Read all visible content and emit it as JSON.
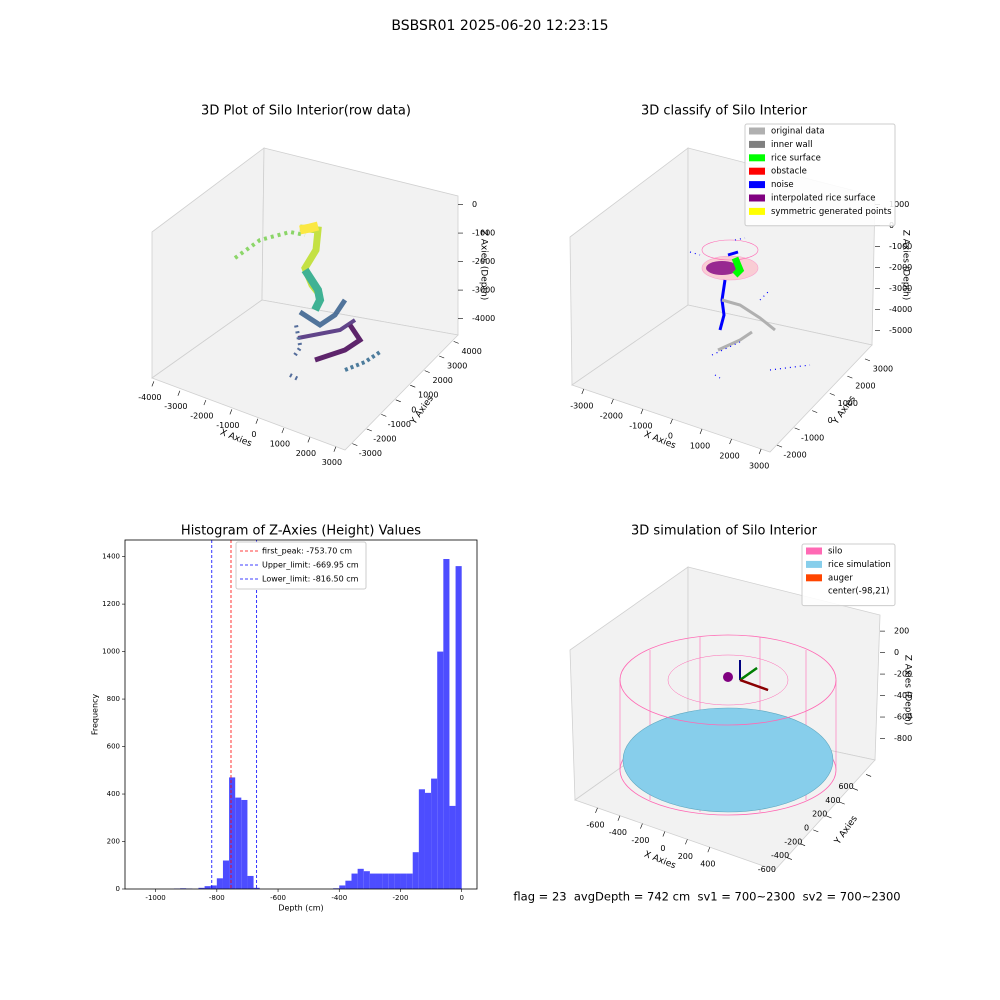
{
  "title": "BSBSR01 2025-06-20 12:23:15",
  "chart_data": [
    {
      "type": "scatter3d",
      "title": "3D Plot of Silo Interior(row data)",
      "xlabel": "X Axies",
      "ylabel": "Y Axies",
      "zlabel": "Z Axies (Depth)",
      "xlim": [
        -4150,
        3350
      ],
      "ylim": [
        -3300,
        4300
      ],
      "zlim": [
        -4400,
        300
      ],
      "xticks": [
        -4000,
        -3000,
        -2000,
        -1000,
        0,
        1000,
        2000,
        3000
      ],
      "yticks": [
        -3000,
        -2000,
        -1000,
        0,
        1000,
        2000,
        3000,
        4000
      ],
      "zticks": [
        0,
        -1000,
        -2000,
        -3000,
        -4000
      ]
    },
    {
      "type": "scatter3d",
      "title": "3D classify of Silo Interior",
      "xlabel": "X Axies",
      "ylabel": "Y Axies",
      "zlabel": "Z Axies (Depth)",
      "xlim": [
        -3400,
        3300
      ],
      "ylim": [
        -2400,
        3400
      ],
      "zlim": [
        -5300,
        1300
      ],
      "xticks": [
        -3000,
        -2000,
        -1000,
        0,
        1000,
        2000,
        3000
      ],
      "yticks": [
        -2000,
        -1000,
        0,
        1000,
        2000,
        3000
      ],
      "zticks": [
        1000,
        0,
        -1000,
        -2000,
        -3000,
        -4000,
        -5000
      ],
      "legend": [
        {
          "name": "original data",
          "color": "#b0b0b0"
        },
        {
          "name": "inner wall",
          "color": "#808080"
        },
        {
          "name": "rice surface",
          "color": "#00ff00"
        },
        {
          "name": "obstacle",
          "color": "#ff0000"
        },
        {
          "name": "noise",
          "color": "#0000ff"
        },
        {
          "name": "interpolated rice surface",
          "color": "#800080"
        },
        {
          "name": "symmetric generated points",
          "color": "#ffff00"
        }
      ]
    },
    {
      "type": "histogram",
      "title": "Histogram of Z-Axies (Height) Values",
      "xlabel": "Depth (cm)",
      "ylabel": "Frequency",
      "color": "#4d4dff",
      "bins": [
        -940,
        -920,
        -900,
        -880,
        -860,
        -840,
        -820,
        -800,
        -780,
        -760,
        -740,
        -720,
        -700,
        -680,
        -660,
        -640,
        -620,
        -600,
        -580,
        -560,
        -540,
        -520,
        -500,
        -480,
        -460,
        -440,
        -420,
        -400,
        -380,
        -360,
        -340,
        -320,
        -300,
        -280,
        -260,
        -240,
        -220,
        -200,
        -180,
        -160,
        -140,
        -120,
        -100,
        -80,
        -60,
        -40,
        -20,
        0
      ],
      "values": [
        2,
        3,
        2,
        0,
        5,
        12,
        15,
        45,
        120,
        470,
        385,
        375,
        55,
        5,
        0,
        0,
        0,
        0,
        0,
        0,
        0,
        0,
        0,
        0,
        0,
        0,
        3,
        15,
        35,
        65,
        85,
        75,
        65,
        65,
        65,
        65,
        65,
        65,
        65,
        155,
        420,
        405,
        465,
        1000,
        1390,
        350,
        1360
      ],
      "xlim": [
        -1100,
        50
      ],
      "ylim": [
        0,
        1470
      ],
      "xticks": [
        -1000,
        -800,
        -600,
        -400,
        -200,
        0
      ],
      "yticks": [
        0,
        200,
        400,
        600,
        800,
        1000,
        1200,
        1400
      ],
      "lines": [
        {
          "name": "first_peak: -753.70 cm",
          "value": -753.7,
          "color": "#ff0000"
        },
        {
          "name": "Upper_limit: -669.95 cm",
          "value": -669.95,
          "color": "#0000ff"
        },
        {
          "name": "Lower_limit: -816.50 cm",
          "value": -816.5,
          "color": "#0000ff"
        }
      ]
    },
    {
      "type": "surface3d",
      "title": "3D simulation of Silo Interior",
      "xlabel": "X Axies",
      "ylabel": "Y Axies",
      "zlabel": "Z Axies (Depth)",
      "xlim": [
        -800,
        980
      ],
      "ylim": [
        -780,
        780
      ],
      "zlim": [
        -1000,
        350
      ],
      "xticks": [
        -600,
        -400,
        -200,
        0,
        200,
        400
      ],
      "yticks": [
        -600,
        -400,
        -200,
        0,
        200,
        400,
        600
      ],
      "zticks": [
        200,
        0,
        -200,
        -400,
        -600,
        -800
      ],
      "legend": [
        {
          "name": "silo",
          "color": "#ff69b4"
        },
        {
          "name": "rice simulation",
          "color": "#87ceeb"
        },
        {
          "name": "auger",
          "color": "#ff4500"
        },
        {
          "name": "center(-98,21)",
          "color": "#ffffff"
        }
      ]
    }
  ],
  "footer": "flag = 23  avgDepth = 742 cm  sv1 = 700~2300  sv2 = 700~2300"
}
